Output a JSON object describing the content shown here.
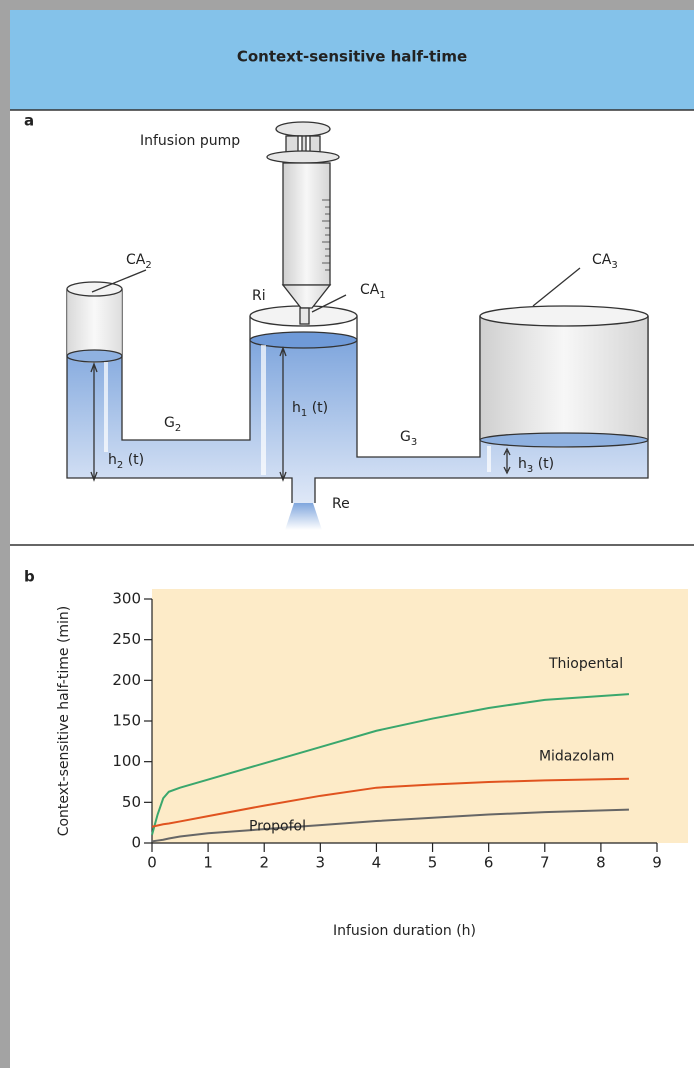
{
  "header": {
    "title": "Context-sensitive half-time"
  },
  "panel_a": {
    "letter": "a",
    "labels": {
      "pump": "Infusion pump",
      "ca2": {
        "text": "CA",
        "sub": "2"
      },
      "ri": "Ri",
      "ca1": {
        "text": "CA",
        "sub": "1"
      },
      "ca3": {
        "text": "CA",
        "sub": "3"
      },
      "g2": {
        "text": "G",
        "sub": "2"
      },
      "h1": {
        "text": "h",
        "sub": "1",
        "after": " (t)"
      },
      "g3": {
        "text": "G",
        "sub": "3"
      },
      "h2": {
        "text": "h",
        "sub": "2",
        "after": " (t)"
      },
      "h3": {
        "text": "h",
        "sub": "3",
        "after": " (t)"
      },
      "re": "Re"
    }
  },
  "panel_b": {
    "letter": "b"
  },
  "chart_data": {
    "type": "line",
    "xlabel": "Infusion duration (h)",
    "ylabel": "Context-sensitive half-time (min)",
    "x": [
      0,
      0.1,
      0.2,
      0.3,
      0.5,
      1,
      2,
      3,
      4,
      5,
      6,
      7,
      8.5
    ],
    "series": [
      {
        "name": "Thiopental",
        "color": "#3aa76d",
        "values": [
          10,
          35,
          55,
          63,
          68,
          78,
          98,
          118,
          138,
          153,
          166,
          176,
          183
        ]
      },
      {
        "name": "Midazolam",
        "color": "#e0531f",
        "values": [
          20,
          21.5,
          23,
          24,
          26.5,
          33,
          46,
          58,
          68,
          72,
          75,
          77,
          79
        ]
      },
      {
        "name": "Propofol",
        "color": "#666666",
        "values": [
          2,
          3,
          4,
          5.5,
          8,
          12,
          17,
          22,
          27,
          31,
          35,
          38,
          41
        ]
      }
    ],
    "xlim": [
      0,
      9
    ],
    "xticks": [
      0,
      1,
      2,
      3,
      4,
      5,
      6,
      7,
      8,
      9
    ],
    "ylim": [
      0,
      300
    ],
    "yticks": [
      0,
      50,
      100,
      150,
      200,
      250,
      300
    ],
    "background": "#fdebc8"
  }
}
